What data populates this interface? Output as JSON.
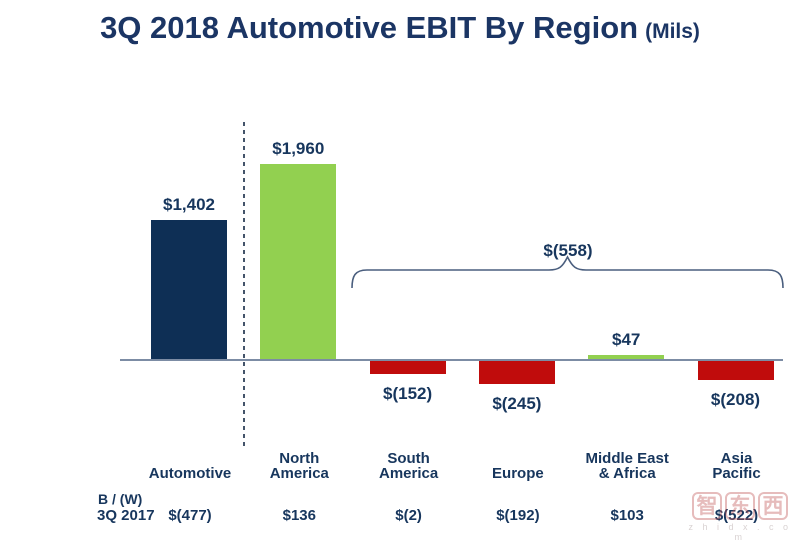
{
  "title": {
    "main": "3Q 2018 Automotive EBIT By Region",
    "unit": "(Mils)"
  },
  "colors": {
    "navy": "#0E2F55",
    "green": "#92D050",
    "red": "#C00C0C",
    "text": "#17365D",
    "axis": "#7C8CA4",
    "accent": "#44546A"
  },
  "chart_data": {
    "type": "bar",
    "title": "3Q 2018 Automotive EBIT By Region (Mils)",
    "categories": [
      "Automotive",
      "North America",
      "South America",
      "Europe",
      "Middle East & Africa",
      "Asia Pacific"
    ],
    "category_lines": [
      [
        "Automotive"
      ],
      [
        "North",
        "America"
      ],
      [
        "South",
        "America"
      ],
      [
        "Europe"
      ],
      [
        "Middle East",
        "& Africa"
      ],
      [
        "Asia",
        "Pacific"
      ]
    ],
    "values": [
      1402,
      1960,
      -152,
      -245,
      47,
      -208
    ],
    "value_labels": [
      "$1,402",
      "$1,960",
      "$(152)",
      "$(245)",
      "$47",
      "$(208)"
    ],
    "bar_colors": [
      "navy",
      "green",
      "red",
      "red",
      "green",
      "red"
    ],
    "ylim": [
      -300,
      2100
    ],
    "grid": false,
    "legend": false,
    "separator": {
      "type": "dashed-vertical-line",
      "after_category": "Automotive"
    },
    "brace_annotation": {
      "label": "$(558)",
      "from_category": "South America",
      "to_category": "Asia Pacific"
    },
    "comparison_row": {
      "label_lines": [
        "B / (W)",
        "3Q 2017"
      ],
      "values": [
        "$(477)",
        "$136",
        "$(2)",
        "$(192)",
        "$103",
        "$(522)"
      ]
    }
  },
  "watermark": {
    "logo_chars": [
      "智",
      "东",
      "西"
    ],
    "domain_text": "z h i d x . c o m"
  }
}
